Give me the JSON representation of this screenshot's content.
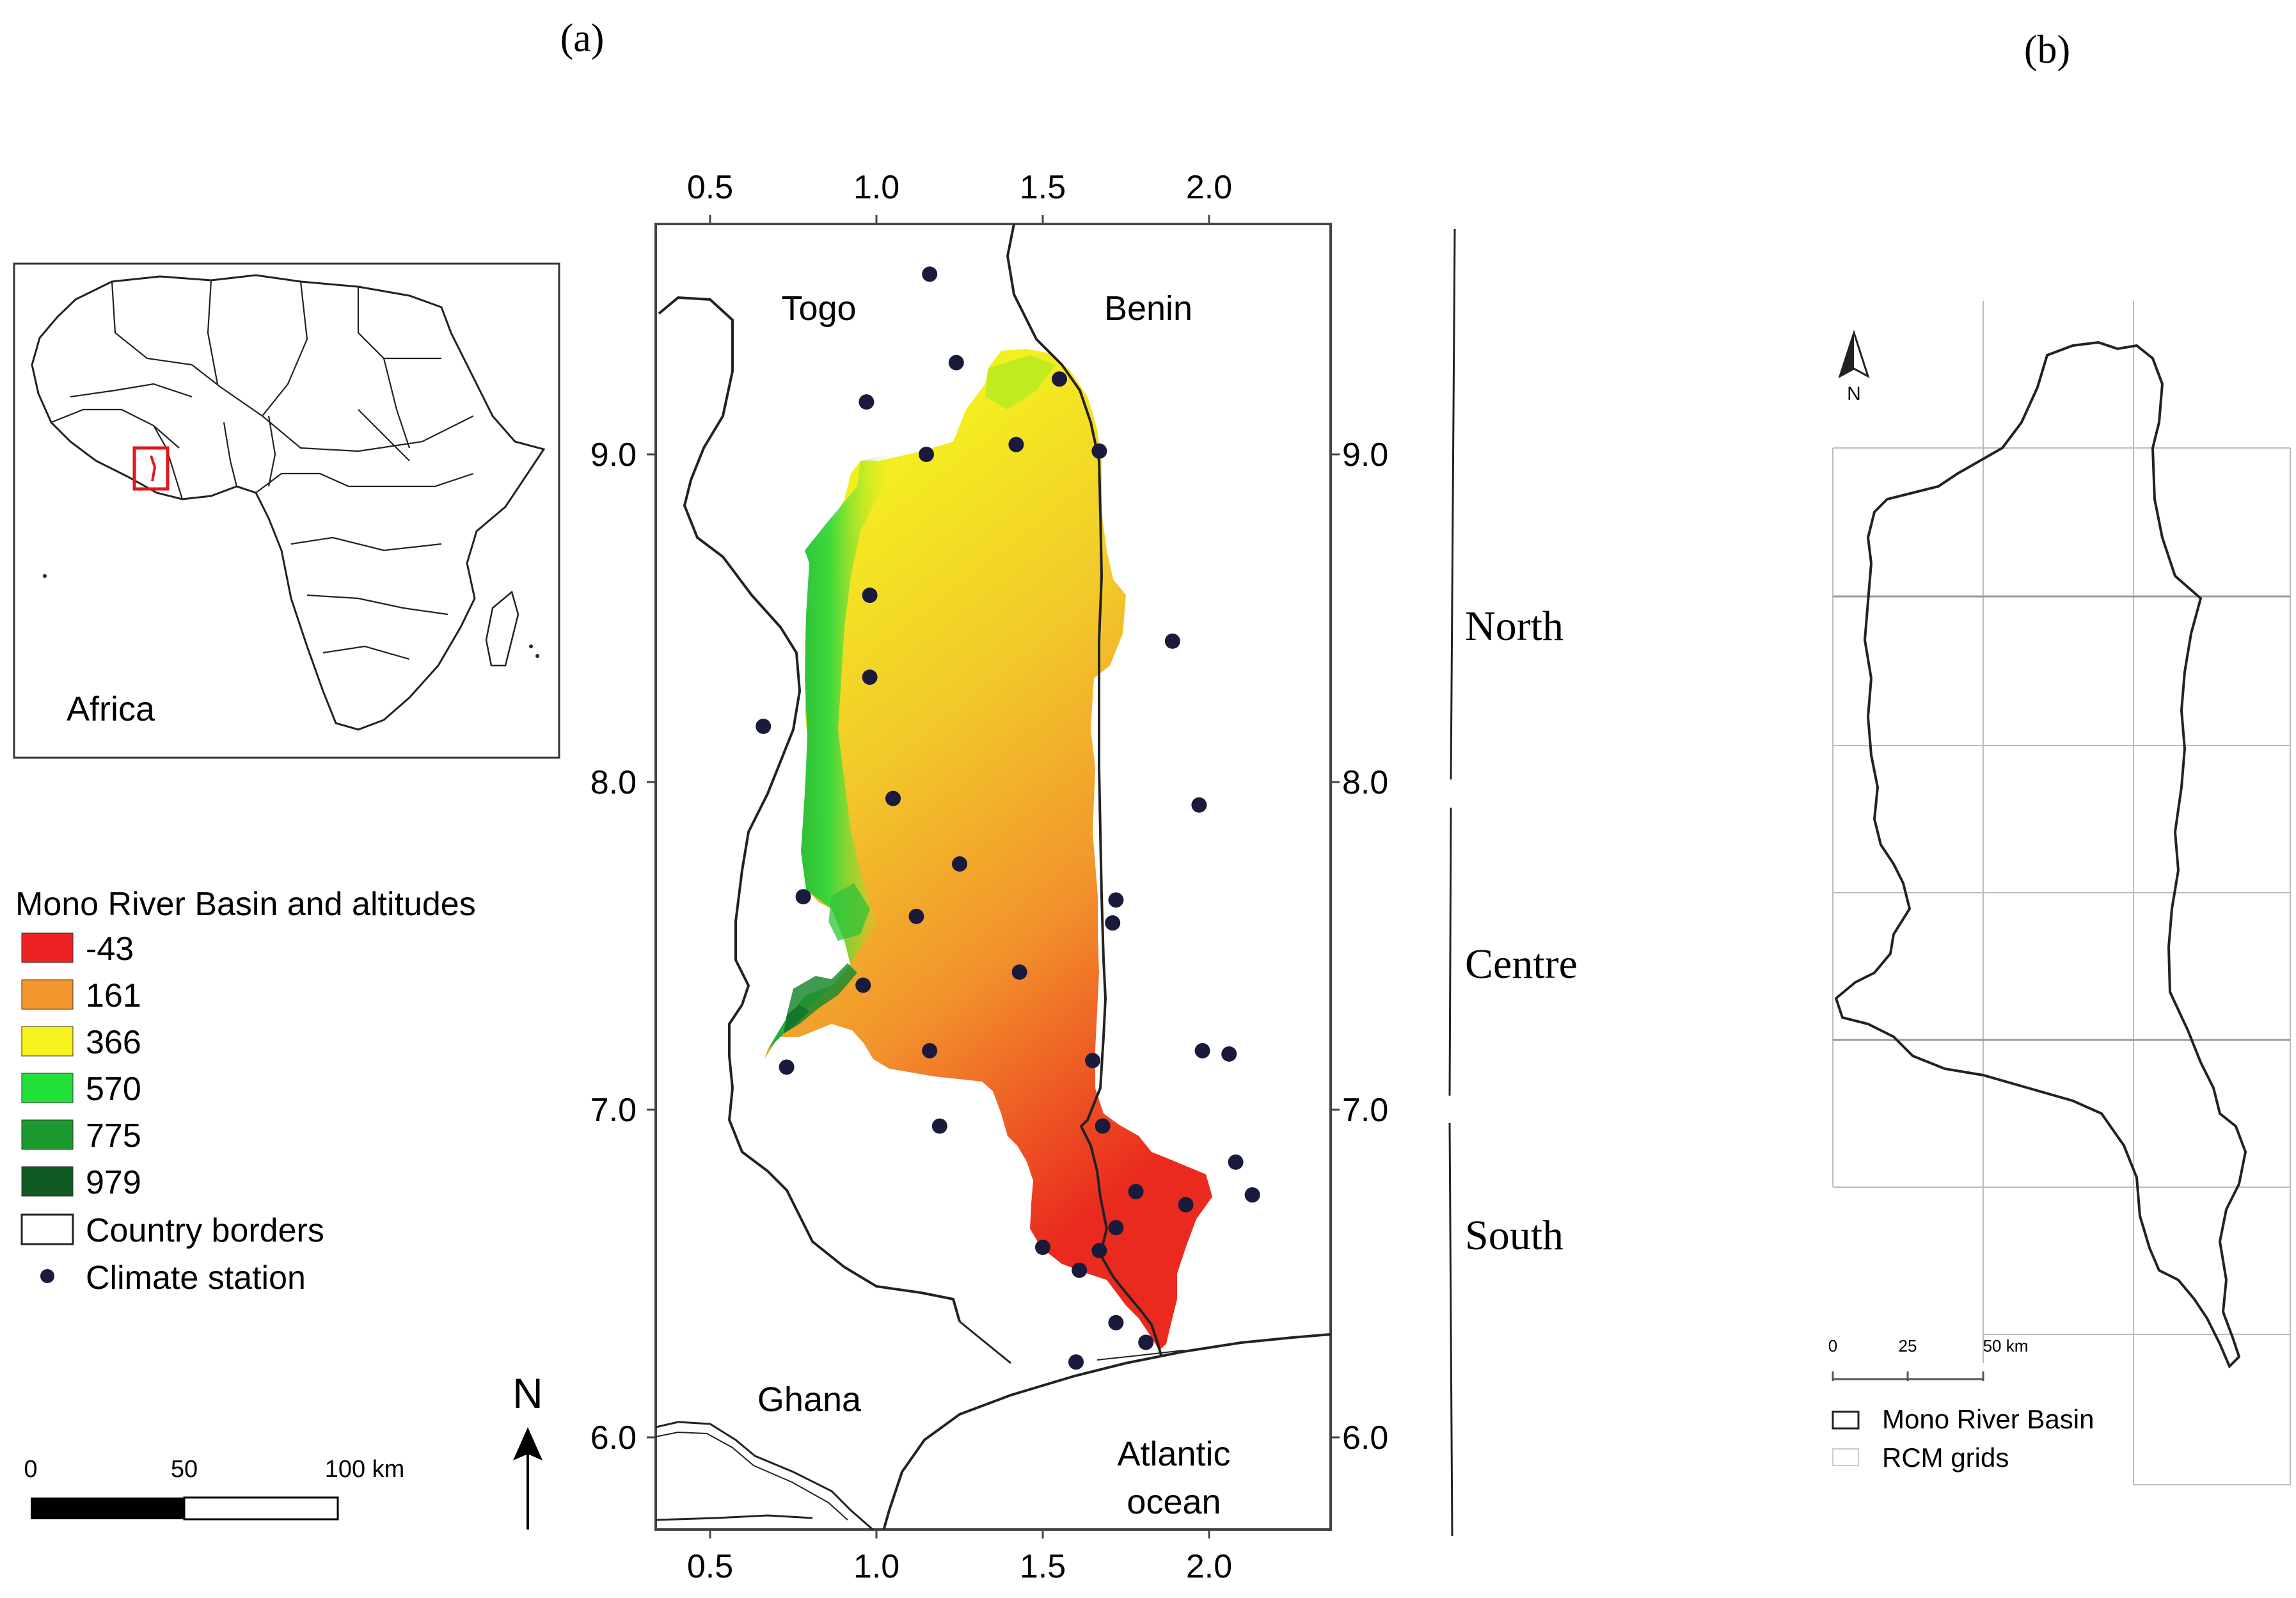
{
  "panel_labels": {
    "a": "(a)",
    "b": "(b)"
  },
  "inset": {
    "label": "Africa"
  },
  "legend": {
    "title": "Mono River Basin and altitudes",
    "items": [
      {
        "label": "-43",
        "color": "#ee2222"
      },
      {
        "label": "161",
        "color": "#f4962e"
      },
      {
        "label": "366",
        "color": "#f6f21e"
      },
      {
        "label": "570",
        "color": "#22e03a"
      },
      {
        "label": "775",
        "color": "#1a9a2c"
      },
      {
        "label": "979",
        "color": "#0e5a22"
      }
    ],
    "borders_label": "Country borders",
    "station_label": "Climate station"
  },
  "north_arrow_label": "N",
  "scalebar": {
    "ticks": [
      "0",
      "50",
      "100 km"
    ]
  },
  "map": {
    "x_ticks": [
      "0.5",
      "1.0",
      "1.5",
      "2.0"
    ],
    "y_ticks": [
      "9.0",
      "8.0",
      "7.0",
      "6.0"
    ],
    "countries": {
      "togo": "Togo",
      "benin": "Benin",
      "ghana": "Ghana"
    },
    "ocean": [
      "Atlantic",
      "ocean"
    ],
    "stations_count_label": ""
  },
  "regions": {
    "north": "North",
    "centre": "Centre",
    "south": "South"
  },
  "panel_b": {
    "north_label": "N",
    "scale_ticks": [
      "0",
      "25",
      "50 km"
    ],
    "legend": {
      "basin": "Mono River Basin",
      "grids": "RCM grids"
    }
  },
  "stations": [
    [
      1.16,
      9.55
    ],
    [
      1.24,
      9.28
    ],
    [
      1.55,
      9.23
    ],
    [
      0.97,
      9.16
    ],
    [
      1.15,
      9.0
    ],
    [
      1.42,
      9.03
    ],
    [
      1.67,
      9.01
    ],
    [
      0.98,
      8.57
    ],
    [
      0.98,
      8.32
    ],
    [
      1.89,
      8.43
    ],
    [
      0.66,
      8.17
    ],
    [
      1.05,
      7.95
    ],
    [
      1.97,
      7.93
    ],
    [
      1.25,
      7.75
    ],
    [
      0.78,
      7.65
    ],
    [
      1.12,
      7.59
    ],
    [
      1.72,
      7.64
    ],
    [
      1.71,
      7.57
    ],
    [
      0.96,
      7.38
    ],
    [
      1.43,
      7.42
    ],
    [
      0.73,
      7.13
    ],
    [
      1.16,
      7.18
    ],
    [
      1.98,
      7.18
    ],
    [
      2.06,
      7.17
    ],
    [
      1.65,
      7.15
    ],
    [
      1.19,
      6.95
    ],
    [
      1.68,
      6.95
    ],
    [
      2.08,
      6.84
    ],
    [
      1.78,
      6.75
    ],
    [
      1.93,
      6.71
    ],
    [
      2.13,
      6.74
    ],
    [
      1.72,
      6.64
    ],
    [
      1.5,
      6.58
    ],
    [
      1.67,
      6.57
    ],
    [
      1.61,
      6.51
    ],
    [
      1.72,
      6.35
    ],
    [
      1.81,
      6.29
    ],
    [
      1.6,
      6.23
    ]
  ]
}
